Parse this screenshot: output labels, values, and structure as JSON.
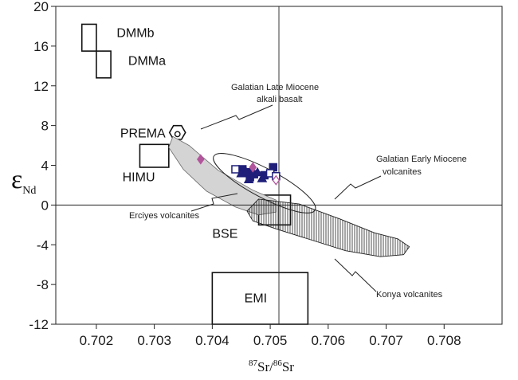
{
  "chart_data": {
    "type": "scatter",
    "title": "",
    "xlabel": "87Sr/86Sr",
    "xlabel_parts": {
      "sup1": "87",
      "base1": "Sr/",
      "sup2": "86",
      "base2": "Sr"
    },
    "ylabel": "εNd",
    "ylabel_parts": {
      "symbol": "ε",
      "sub": "Nd"
    },
    "xlim": [
      0.7013,
      0.709
    ],
    "ylim": [
      -12,
      20
    ],
    "x_ticks": [
      "0.702",
      "0.703",
      "0.704",
      "0.705",
      "0.706",
      "0.707",
      "0.708"
    ],
    "x_tick_values": [
      0.702,
      0.703,
      0.704,
      0.705,
      0.706,
      0.707,
      0.708
    ],
    "y_ticks": [
      "20",
      "16",
      "12",
      "8",
      "4",
      "0",
      "-4",
      "-8",
      "-12"
    ],
    "y_tick_values": [
      20,
      16,
      12,
      8,
      4,
      0,
      -4,
      -8,
      -12
    ],
    "reference_lines": {
      "x": 0.70515,
      "y": 0
    },
    "grid": false,
    "legend": "none",
    "colors": {
      "navy": "#1f1f7a",
      "magenta": "#b2559c",
      "field_gray": "#d4d4d4"
    },
    "fields": [
      {
        "label": "DMMb",
        "x": [
          0.70175,
          0.702
        ],
        "y": [
          15.5,
          18.2
        ]
      },
      {
        "label": "DMMa",
        "x": [
          0.702,
          0.70225
        ],
        "y": [
          12.8,
          15.5
        ]
      },
      {
        "label": "HIMU",
        "x": [
          0.70275,
          0.70325
        ],
        "y": [
          3.8,
          6.1
        ]
      },
      {
        "label": "BSE",
        "x": [
          0.7048,
          0.70535
        ],
        "y": [
          -2.0,
          1.0
        ]
      },
      {
        "label": "EMI",
        "x": [
          0.704,
          0.70565
        ],
        "y": [
          -12,
          -6.8
        ]
      }
    ],
    "prema": {
      "label": "PREMA",
      "x": 0.7034,
      "y": 7.3
    },
    "series": [
      {
        "marker": "filled-square",
        "points": [
          [
            0.70452,
            3.6
          ],
          [
            0.70462,
            3.3
          ],
          [
            0.70472,
            3.1
          ],
          [
            0.7049,
            3.0
          ],
          [
            0.70505,
            3.8
          ],
          [
            0.70465,
            2.8
          ]
        ]
      },
      {
        "marker": "open-square",
        "points": [
          [
            0.7044,
            3.6
          ],
          [
            0.705,
            3.2
          ],
          [
            0.7051,
            2.9
          ]
        ]
      },
      {
        "marker": "filled-triangle",
        "points": [
          [
            0.7045,
            3.2
          ],
          [
            0.70463,
            2.6
          ],
          [
            0.70478,
            3.3
          ],
          [
            0.70486,
            2.7
          ],
          [
            0.70458,
            3.4
          ]
        ]
      },
      {
        "marker": "filled-diamond",
        "points": [
          [
            0.7038,
            4.6
          ],
          [
            0.7047,
            3.8
          ]
        ]
      },
      {
        "marker": "open-diamond",
        "points": [
          [
            0.7051,
            2.5
          ]
        ]
      }
    ],
    "annotations": {
      "galatian_late_line1": "Galatian Late Miocene",
      "galatian_late_line2": "alkali basalt",
      "galatian_early_line1": "Galatian Early Miocene",
      "galatian_early_line2": "volcanites",
      "erciyes": "Erciyes volcanites",
      "konya": "Konya volcanites"
    }
  }
}
